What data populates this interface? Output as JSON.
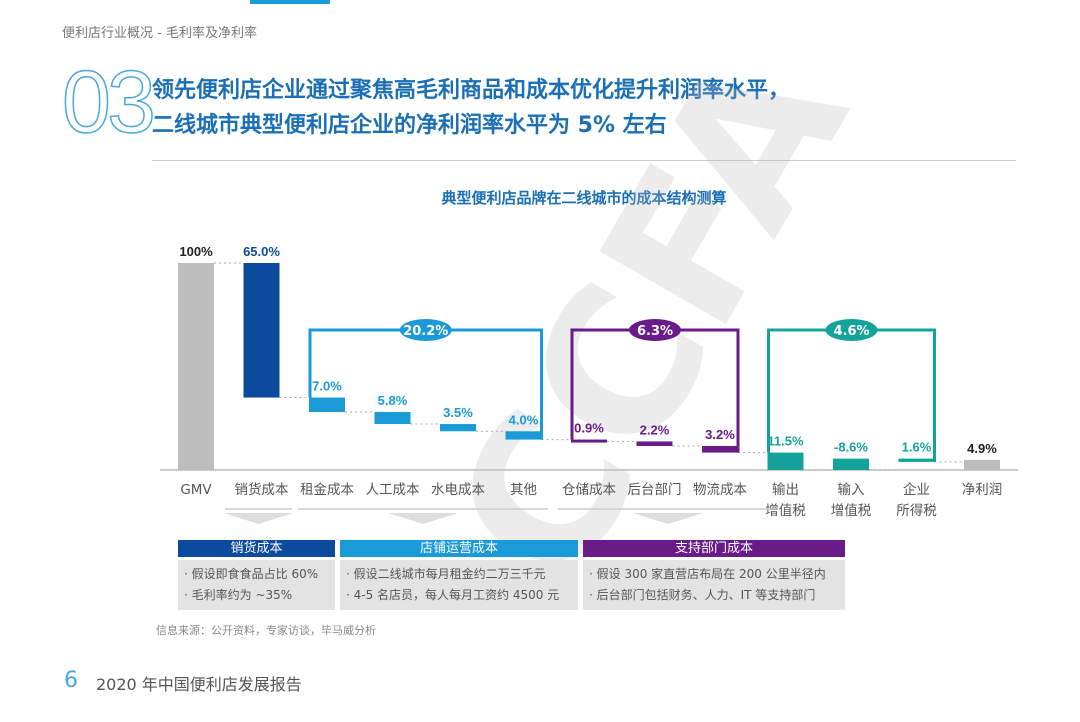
{
  "header": {
    "section": "便利店行业概况 - 毛利率及净利率",
    "number": "03",
    "title_lines": [
      "领先便利店企业通过聚焦高毛利商品和成本优化提升利润率水平，",
      "二线城市典型便利店企业的净利润率水平为 5% 左右"
    ]
  },
  "colors": {
    "gmv": "#bdbdbd",
    "cogs": "#0b4a9c",
    "store": "#1a9ad6",
    "support": "#6a1b8a",
    "tax": "#14a39a",
    "net": "#bdbdbd",
    "accent": "#1a6fb5"
  },
  "chart_data": {
    "type": "waterfall",
    "title": "典型便利店品牌在二线城市的成本结构测算",
    "categories": [
      "GMV",
      "销货成本",
      "租金成本",
      "人工成本",
      "水电成本",
      "其他",
      "仓储成本",
      "后台部门",
      "物流成本",
      "输出\n增值税",
      "输入\n增值税",
      "企业\n所得税",
      "净利润"
    ],
    "values": [
      100,
      65.0,
      7.0,
      5.8,
      3.5,
      4.0,
      0.9,
      2.2,
      3.2,
      11.5,
      -8.6,
      1.6,
      4.9
    ],
    "labels": [
      "100%",
      "65.0%",
      "7.0%",
      "5.8%",
      "3.5%",
      "4.0%",
      "0.9%",
      "2.2%",
      "3.2%",
      "11.5%",
      "-8.6%",
      "1.6%",
      "4.9%"
    ],
    "groups": [
      {
        "label": "20.2%",
        "color": "#1a9ad6"
      },
      {
        "label": "6.3%",
        "color": "#6a1b8a"
      },
      {
        "label": "4.6%",
        "color": "#14a39a"
      }
    ]
  },
  "legend": [
    {
      "title": "销货成本",
      "lines": [
        "· 假设即食食品占比 60%",
        "· 毛利率约为 ~35%"
      ]
    },
    {
      "title": "店铺运营成本",
      "lines": [
        "· 假设二线城市每月租金约二万三千元",
        "· 4-5 名店员，每人每月工资约 4500 元"
      ]
    },
    {
      "title": "支持部门成本",
      "lines": [
        "· 假设 300 家直营店布局在 200 公里半径内",
        "· 后台部门包括财务、人力、IT 等支持部门"
      ]
    }
  ],
  "footer": {
    "source": "信息来源：公开资料，专家访谈，毕马威分析",
    "page": "6",
    "report": "2020 年中国便利店发展报告"
  },
  "watermark": "CCFA"
}
